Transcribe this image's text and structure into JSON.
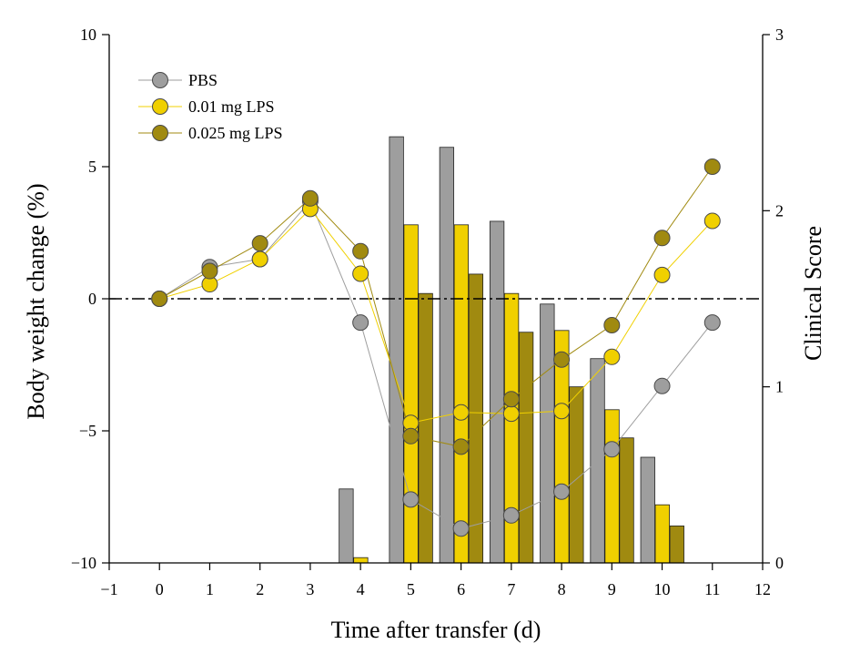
{
  "chart_data": {
    "type": "bar+line",
    "title": "",
    "xlabel": "Time after transfer (d)",
    "ylabel": "Body weight change (%)",
    "y2label": "Clinical Score",
    "xlim": [
      -1,
      12
    ],
    "ylim": [
      -10,
      10
    ],
    "y2lim": [
      0,
      3
    ],
    "x_ticks": [
      -1,
      0,
      1,
      2,
      3,
      4,
      5,
      6,
      7,
      8,
      9,
      10,
      11,
      12
    ],
    "y_ticks": [
      -10,
      -5,
      0,
      5,
      10
    ],
    "y_tick_labels": [
      "−10",
      "−5",
      "0",
      "5",
      "10"
    ],
    "y2_ticks": [
      0,
      1,
      2,
      3
    ],
    "reference_line": {
      "y": 0,
      "style": "dash-dot"
    },
    "series": [
      {
        "name": "PBS",
        "color": "#9e9e9e",
        "line_x": [
          0,
          1,
          2,
          3,
          4,
          5,
          6,
          7,
          8,
          9,
          10,
          11
        ],
        "line_values": [
          0,
          1.2,
          1.5,
          3.7,
          -0.9,
          -7.6,
          -8.7,
          -8.2,
          -7.3,
          -5.7,
          -3.3,
          -0.9
        ],
        "bar_x": [
          4,
          5,
          6,
          7,
          8,
          9,
          10
        ],
        "clinical_score": [
          0.42,
          2.42,
          2.36,
          1.94,
          1.47,
          1.16,
          0.6
        ]
      },
      {
        "name": "0.01 mg LPS",
        "color": "#f0d000",
        "line_x": [
          0,
          1,
          2,
          3,
          4,
          5,
          6,
          7,
          8,
          9,
          10,
          11
        ],
        "line_values": [
          0,
          0.55,
          1.5,
          3.4,
          0.95,
          -4.7,
          -4.3,
          -4.35,
          -4.25,
          -2.2,
          0.9,
          2.95
        ],
        "bar_x": [
          4,
          5,
          6,
          7,
          8,
          9,
          10
        ],
        "clinical_score": [
          0.03,
          1.92,
          1.92,
          1.53,
          1.32,
          0.87,
          0.33
        ]
      },
      {
        "name": "0.025 mg LPS",
        "color": "#a08a10",
        "line_x": [
          0,
          1,
          2,
          3,
          4,
          5,
          6,
          7,
          8,
          9,
          10,
          11
        ],
        "line_values": [
          0,
          1.05,
          2.1,
          3.8,
          1.8,
          -5.2,
          -5.6,
          -3.8,
          -2.3,
          -1.0,
          2.3,
          5.0
        ],
        "bar_x": [
          5,
          6,
          7,
          8,
          9,
          10
        ],
        "clinical_score": [
          1.53,
          1.64,
          1.31,
          1.0,
          0.71,
          0.21
        ]
      }
    ],
    "legend": {
      "position": "top-left",
      "entries": [
        "PBS",
        "0.01 mg LPS",
        "0.025 mg LPS"
      ]
    }
  }
}
